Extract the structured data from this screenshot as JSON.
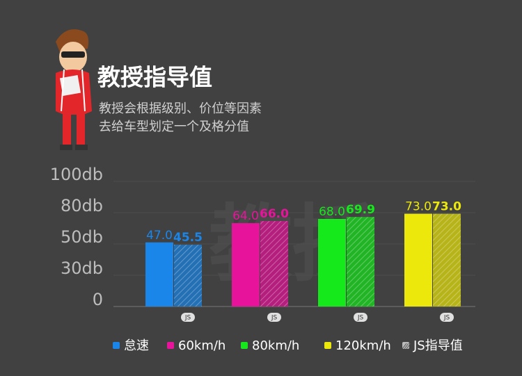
{
  "header": {
    "title": "教授指导值",
    "subtitle_lines": [
      "教授会根据级别、价位等因素",
      "去给车型划定一个及格分值"
    ],
    "watermark": "教授"
  },
  "chart_data": {
    "type": "bar",
    "categories": [
      "怠速",
      "60km/h",
      "80km/h",
      "120km/h"
    ],
    "colors": [
      "#1a86ea",
      "#e8139b",
      "#15e81b",
      "#ece80c"
    ],
    "series": [
      {
        "values": [
          47.0,
          64.0,
          68.0,
          73.0
        ],
        "value_labels": [
          "47.0",
          "64.0",
          "68.0",
          "73.0"
        ]
      },
      {
        "name": "JS指导值",
        "pattern": "hatch",
        "values": [
          45.5,
          66.0,
          69.9,
          73.0
        ],
        "value_labels": [
          "45.5",
          "66.0",
          "69.9",
          "73.0"
        ]
      }
    ],
    "badge": "JS",
    "ylim": [
      0,
      100
    ],
    "yticks": [
      {
        "value": 100,
        "label": "100db"
      },
      {
        "value": 80,
        "label": "80db"
      },
      {
        "value": 50,
        "label": "50db"
      },
      {
        "value": 30,
        "label": "30db"
      },
      0
    ],
    "grid": true
  }
}
